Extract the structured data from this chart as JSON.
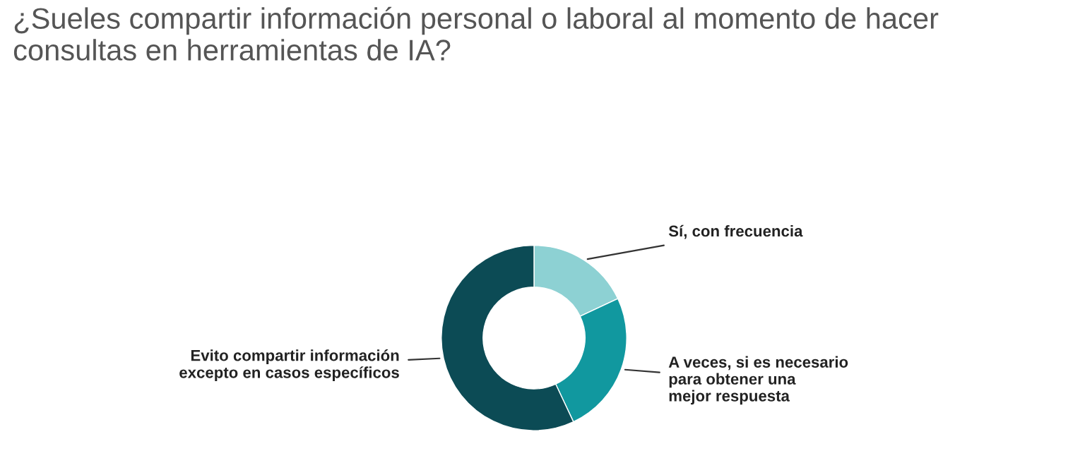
{
  "chart_data": {
    "type": "donut",
    "title": "¿Sueles compartir información personal o laboral al momento de hacer consultas en herramientas de IA?",
    "categories": [
      "Sí, con frecuencia",
      "A veces, si es necesario\npara obtener una\nmejor respuesta",
      "Evito compartir información\nexcepto en casos específicos"
    ],
    "values": [
      18,
      25,
      57
    ],
    "colors": [
      "#8dd1d3",
      "#11989f",
      "#0c4b55"
    ]
  }
}
